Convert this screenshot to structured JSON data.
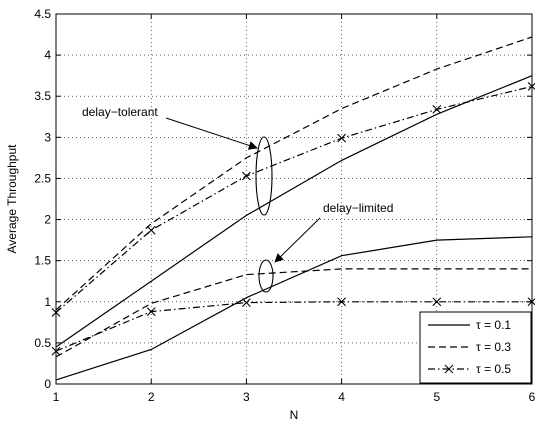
{
  "chart_data": {
    "type": "line",
    "xlabel": "N",
    "ylabel": "Average Throughput",
    "xlim": [
      1,
      6
    ],
    "ylim": [
      0,
      4.5
    ],
    "x_ticks": [
      "1",
      "2",
      "3",
      "4",
      "5",
      "6"
    ],
    "y_ticks": [
      "0",
      "0.5",
      "1",
      "1.5",
      "2",
      "2.5",
      "3",
      "3.5",
      "4",
      "4.5"
    ],
    "grid": true,
    "legend_position": "bottom-right",
    "legend": [
      {
        "label": "τ = 0.1",
        "style": "solid",
        "marker": "none"
      },
      {
        "label": "τ = 0.3",
        "style": "dashed",
        "marker": "none"
      },
      {
        "label": "τ = 0.5",
        "style": "dashdot",
        "marker": "x"
      }
    ],
    "annotations": [
      {
        "text": "delay−tolerant",
        "target_x": 3.2,
        "target_y": 2.7
      },
      {
        "text": "delay−limited",
        "target_x": 3.2,
        "target_y": 1.3
      }
    ],
    "series": [
      {
        "group": "delay-tolerant",
        "legend_index": 0,
        "x": [
          1,
          2,
          3,
          4,
          5,
          6
        ],
        "values": [
          0.45,
          1.25,
          2.05,
          2.72,
          3.28,
          3.75
        ]
      },
      {
        "group": "delay-tolerant",
        "legend_index": 1,
        "x": [
          1,
          2,
          3,
          4,
          5,
          6
        ],
        "values": [
          0.9,
          1.95,
          2.75,
          3.35,
          3.83,
          4.22
        ]
      },
      {
        "group": "delay-tolerant",
        "legend_index": 2,
        "x": [
          1,
          2,
          3,
          4,
          5,
          6
        ],
        "values": [
          0.87,
          1.87,
          2.53,
          2.99,
          3.34,
          3.62
        ]
      },
      {
        "group": "delay-limited",
        "legend_index": 0,
        "x": [
          1,
          2,
          3,
          4,
          5,
          6
        ],
        "values": [
          0.05,
          0.42,
          1.05,
          1.56,
          1.75,
          1.79
        ]
      },
      {
        "group": "delay-limited",
        "legend_index": 1,
        "x": [
          1,
          2,
          3,
          4,
          5,
          6
        ],
        "values": [
          0.33,
          0.98,
          1.33,
          1.4,
          1.4,
          1.4
        ]
      },
      {
        "group": "delay-limited",
        "legend_index": 2,
        "x": [
          1,
          2,
          3,
          4,
          5,
          6
        ],
        "values": [
          0.4,
          0.88,
          0.99,
          1.0,
          1.0,
          1.0
        ]
      }
    ]
  }
}
